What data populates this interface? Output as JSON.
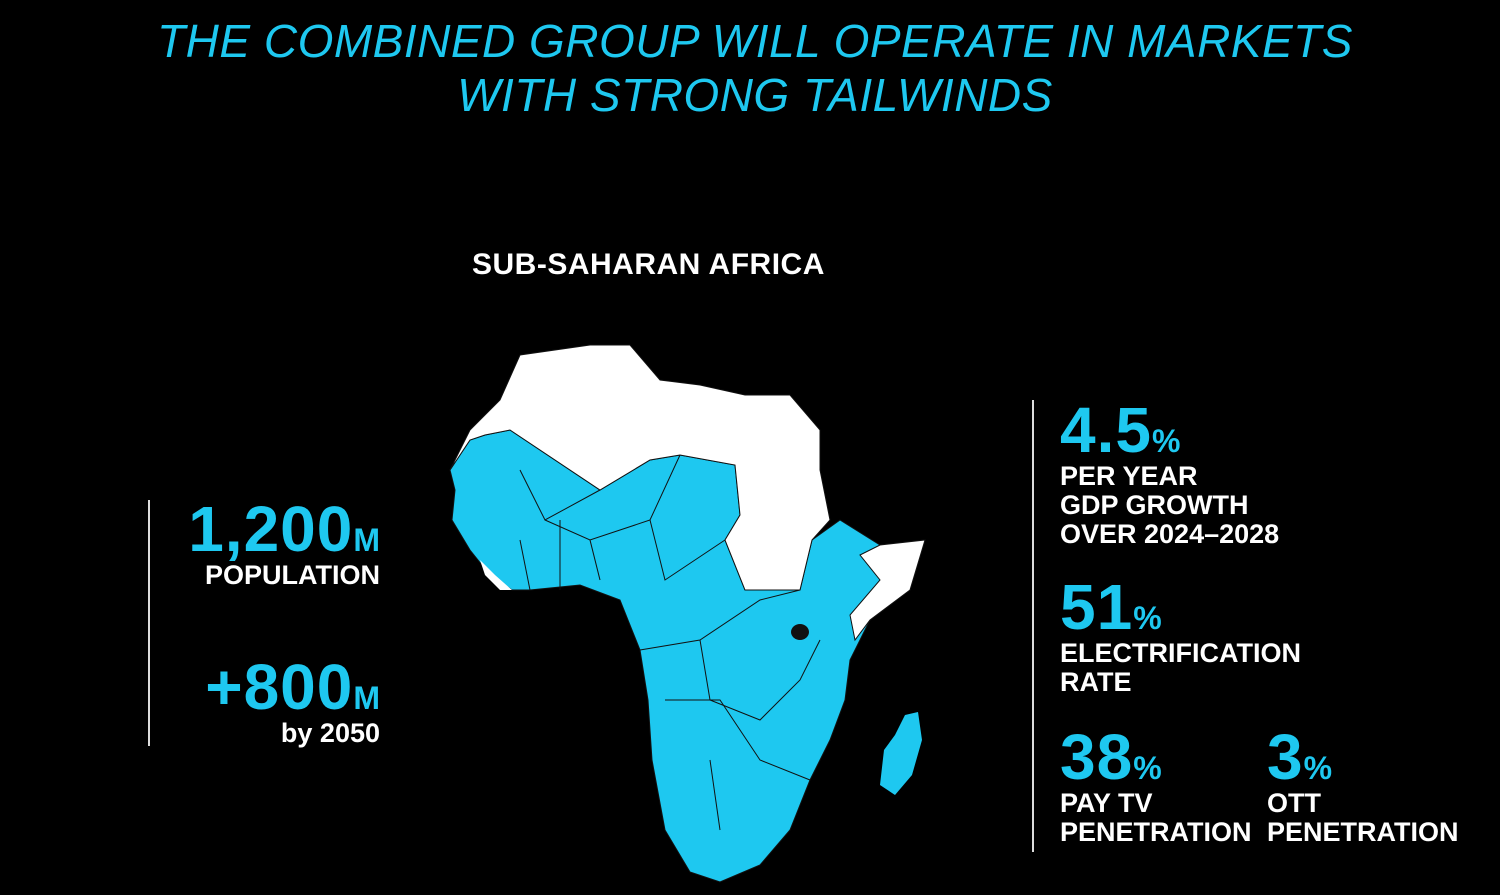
{
  "title": {
    "line1": "THE COMBINED GROUP WILL OPERATE IN MARKETS",
    "line2": "WITH STRONG TAILWINDS"
  },
  "region_label": "SUB-SAHARAN AFRICA",
  "colors": {
    "accent": "#1ec8f0",
    "background": "#000000",
    "north_africa": "#ffffff"
  },
  "left_stats": [
    {
      "value": "1,200",
      "unit": "M",
      "label": "POPULATION"
    },
    {
      "value": "+800",
      "unit": "M",
      "label": "by 2050"
    }
  ],
  "right_stats": [
    {
      "value": "4.5",
      "unit": "%",
      "label_lines": [
        "PER YEAR",
        "GDP GROWTH",
        "OVER 2024–2028"
      ]
    },
    {
      "value": "51",
      "unit": "%",
      "label_lines": [
        "ELECTRIFICATION",
        "RATE"
      ]
    },
    {
      "value": "38",
      "unit": "%",
      "label_lines": [
        "PAY TV",
        "PENETRATION"
      ]
    },
    {
      "value": "3",
      "unit": "%",
      "label_lines": [
        "OTT",
        "PENETRATION"
      ]
    }
  ]
}
